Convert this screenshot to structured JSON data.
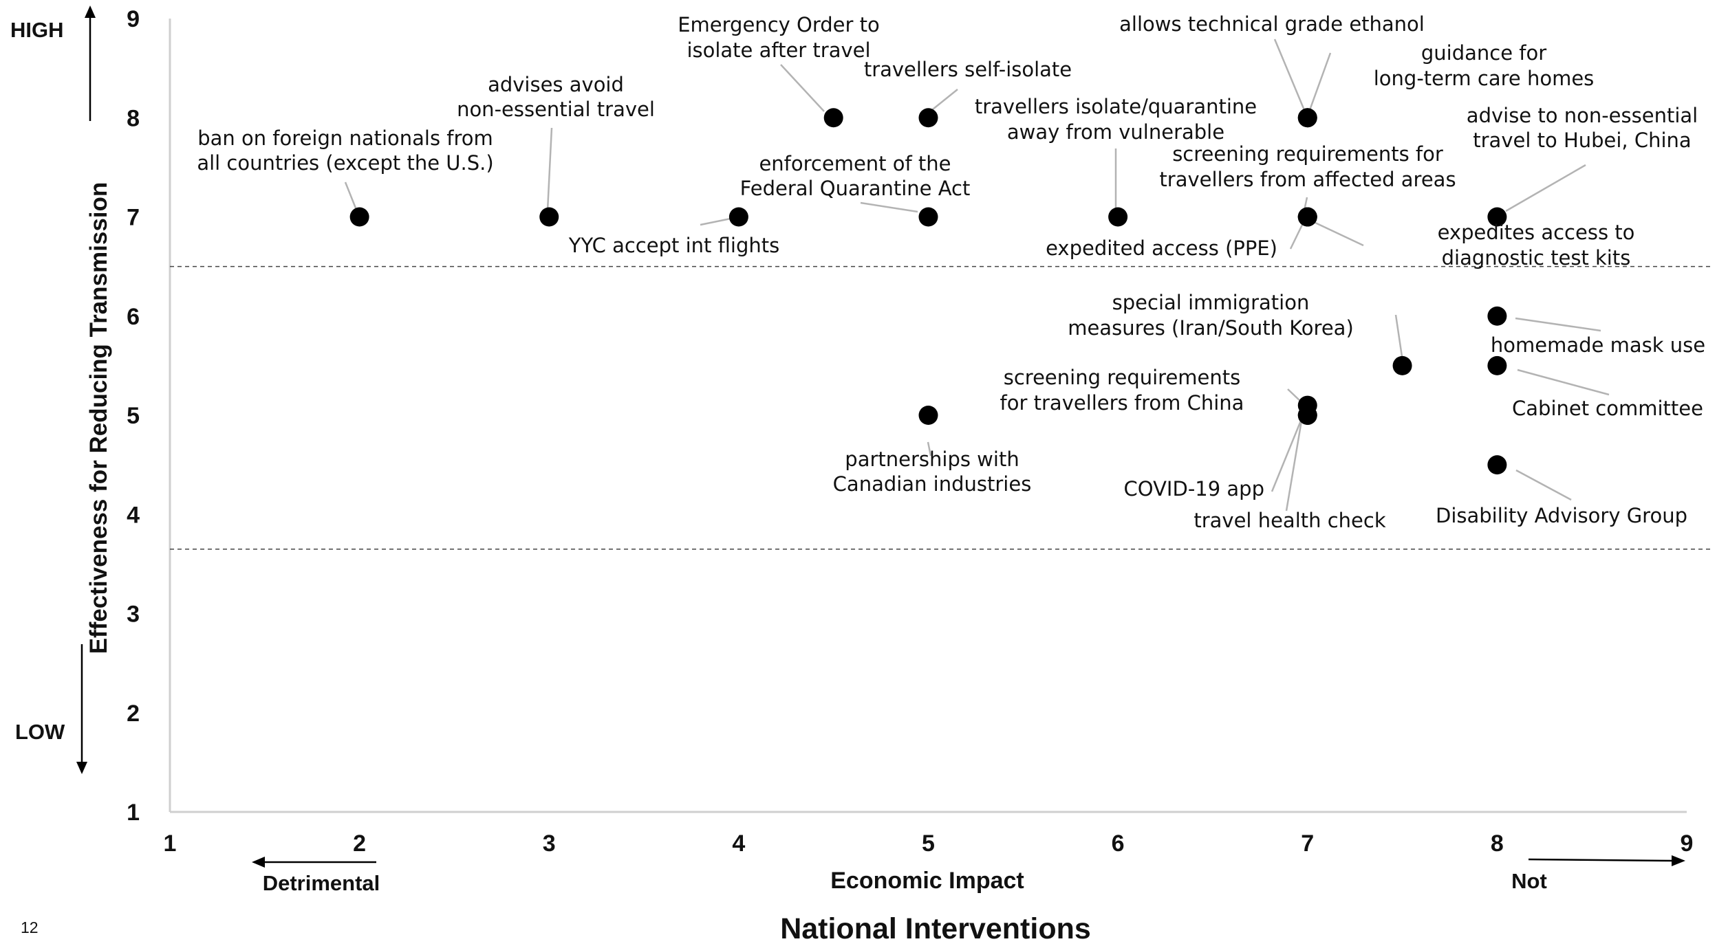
{
  "page_number": "12",
  "chart_data": {
    "type": "scatter",
    "title": "National Interventions",
    "xlabel": "Economic Impact",
    "ylabel": "Effectiveness for Reducing Transmission",
    "xlim": [
      1,
      9
    ],
    "ylim": [
      1,
      9
    ],
    "x_ticks": [
      1,
      2,
      3,
      4,
      5,
      6,
      7,
      8,
      9
    ],
    "y_ticks": [
      1,
      2,
      3,
      4,
      5,
      6,
      7,
      8,
      9
    ],
    "x_low_label": "Detrimental",
    "x_high_label": "Not",
    "y_high_label": "HIGH",
    "y_low_label": "LOW",
    "threshold_lines_y": [
      6.5,
      3.65
    ],
    "grid": false,
    "points": [
      {
        "label": "ban on foreign nationals from all countries (except the U.S.)",
        "x": 2,
        "y": 7
      },
      {
        "label": "advises avoid non-essential travel",
        "x": 3,
        "y": 7
      },
      {
        "label": "YYC accept int flights",
        "x": 4,
        "y": 7
      },
      {
        "label": "Emergency Order to isolate after travel",
        "x": 4.5,
        "y": 8
      },
      {
        "label": "travellers self-isolate",
        "x": 5,
        "y": 8
      },
      {
        "label": "enforcement of the Federal Quarantine Act",
        "x": 5,
        "y": 7
      },
      {
        "label": "partnerships with Canadian industries",
        "x": 5,
        "y": 5
      },
      {
        "label": "travellers isolate/quarantine away from vulnerable",
        "x": 6,
        "y": 7
      },
      {
        "label": "allows technical grade ethanol",
        "x": 7,
        "y": 8
      },
      {
        "label": "guidance for long-term care homes",
        "x": 7,
        "y": 8
      },
      {
        "label": "screening requirements for travellers from affected areas",
        "x": 7,
        "y": 7
      },
      {
        "label": "expedited access (PPE)",
        "x": 7,
        "y": 7
      },
      {
        "label": "expedites access to diagnostic test kits",
        "x": 7,
        "y": 7
      },
      {
        "label": "screening requirements for travellers from China",
        "x": 7,
        "y": 5.1
      },
      {
        "label": "COVID-19 app",
        "x": 7,
        "y": 5
      },
      {
        "label": "travel health check",
        "x": 7,
        "y": 5
      },
      {
        "label": "special immigration measures (Iran/South Korea)",
        "x": 7.5,
        "y": 5.5
      },
      {
        "label": "advise to non-essential travel to Hubei, China",
        "x": 8,
        "y": 7
      },
      {
        "label": "homemade mask use",
        "x": 8,
        "y": 6
      },
      {
        "label": "Cabinet committee",
        "x": 8,
        "y": 5.5
      },
      {
        "label": "Disability Advisory Group",
        "x": 8,
        "y": 4.5
      }
    ]
  }
}
